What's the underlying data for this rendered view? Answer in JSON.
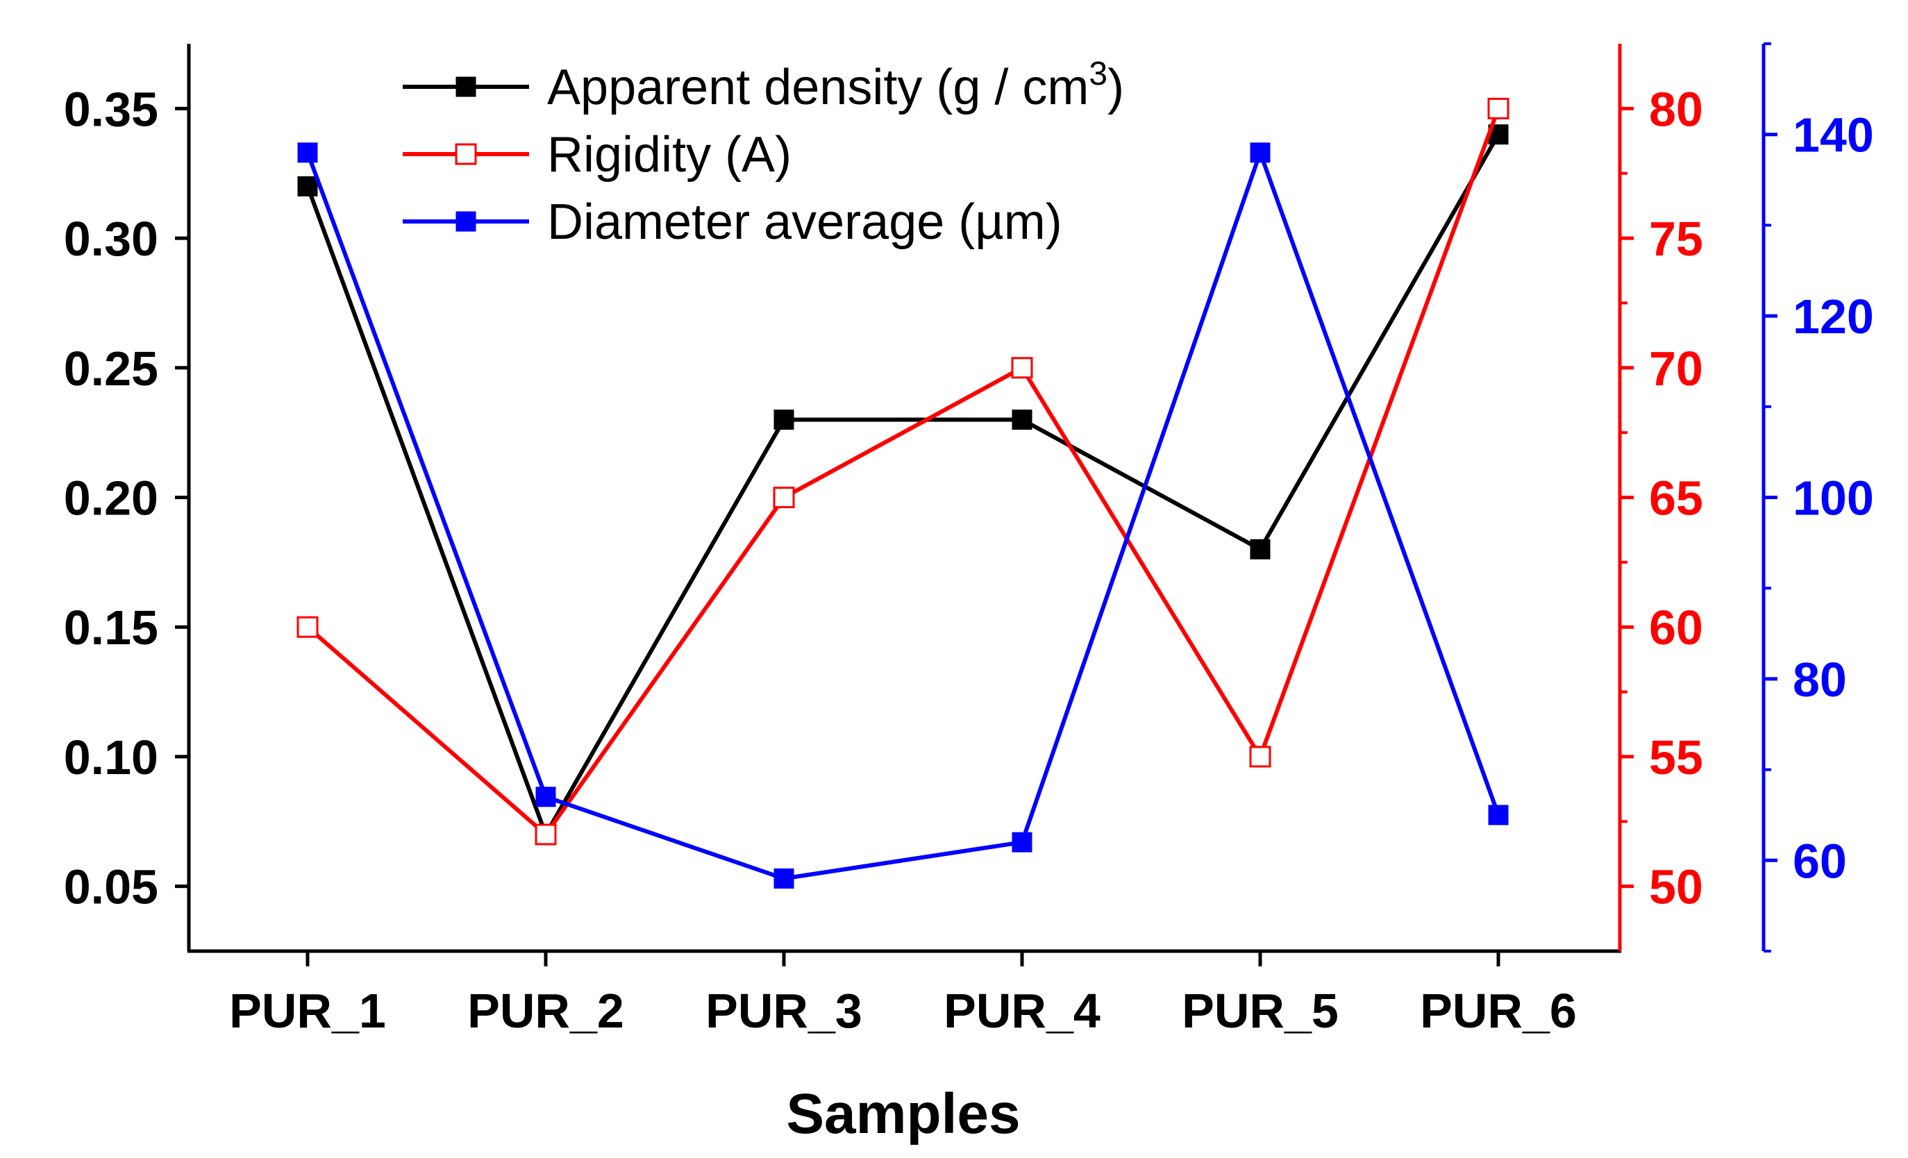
{
  "chart_data": {
    "type": "line",
    "title": "",
    "xlabel": "Samples",
    "categories": [
      "PUR_1",
      "PUR_2",
      "PUR_3",
      "PUR_4",
      "PUR_5",
      "PUR_6"
    ],
    "axes": {
      "left": {
        "range": [
          0.025,
          0.375
        ],
        "ticks": [
          0.05,
          0.1,
          0.15,
          0.2,
          0.25,
          0.3,
          0.35
        ],
        "tick_labels": [
          "0.05",
          "0.10",
          "0.15",
          "0.20",
          "0.25",
          "0.30",
          "0.35"
        ],
        "color": "#000000"
      },
      "right1": {
        "range": [
          47.5,
          82.5
        ],
        "ticks": [
          50,
          55,
          60,
          65,
          70,
          75,
          80
        ],
        "tick_labels": [
          "50",
          "55",
          "60",
          "65",
          "70",
          "75",
          "80"
        ],
        "color": "#ff0000"
      },
      "right2": {
        "range": [
          50,
          150
        ],
        "ticks": [
          60,
          80,
          100,
          120,
          140
        ],
        "tick_labels": [
          "60",
          "80",
          "100",
          "120",
          "140"
        ],
        "color": "#0000ff"
      }
    },
    "series": [
      {
        "name": "Apparent density (g / cm3)",
        "legend_main": "Apparent density (g / cm",
        "legend_sup": "3",
        "legend_tail": ")",
        "axis": "left",
        "color": "#000000",
        "marker": "filled-square",
        "values": [
          0.32,
          0.07,
          0.23,
          0.23,
          0.18,
          0.34
        ]
      },
      {
        "name": "Rigidity (A)",
        "legend_main": "Rigidity (A)",
        "axis": "right1",
        "color": "#ff0000",
        "marker": "open-square",
        "values": [
          60,
          52,
          65,
          70,
          55,
          80
        ]
      },
      {
        "name": "Diameter average (µm)",
        "legend_main": "Diameter average (µm)",
        "axis": "right2",
        "color": "#0000ff",
        "marker": "filled-square",
        "values": [
          138,
          67,
          58,
          62,
          138,
          65
        ]
      }
    ],
    "legend_position": "top-center",
    "grid": false
  }
}
